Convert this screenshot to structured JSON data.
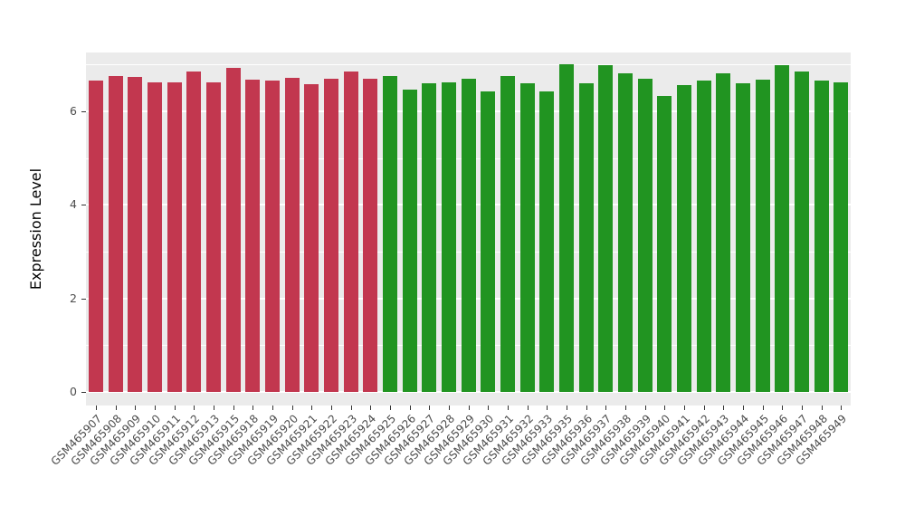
{
  "chart_data": {
    "type": "bar",
    "title": "",
    "xlabel": "",
    "ylabel": "Expression Level",
    "ylim": [
      0,
      7.25
    ],
    "yticks": [
      0,
      2,
      4,
      6
    ],
    "minor_gridlines": [
      1,
      3,
      5,
      7
    ],
    "grid": "on",
    "legend": "none",
    "panel_background": "#EBEBEB",
    "gridline_color": "#ffffff",
    "group1_color": "#C2374F",
    "group2_color": "#219421",
    "group1_count": 15,
    "categories": [
      "GSM465907",
      "GSM465908",
      "GSM465909",
      "GSM465910",
      "GSM465911",
      "GSM465912",
      "GSM465913",
      "GSM465915",
      "GSM465918",
      "GSM465919",
      "GSM465920",
      "GSM465921",
      "GSM465922",
      "GSM465923",
      "GSM465924",
      "GSM465925",
      "GSM465926",
      "GSM465927",
      "GSM465928",
      "GSM465929",
      "GSM465930",
      "GSM465931",
      "GSM465932",
      "GSM465933",
      "GSM465935",
      "GSM465936",
      "GSM465937",
      "GSM465938",
      "GSM465939",
      "GSM465940",
      "GSM465941",
      "GSM465942",
      "GSM465943",
      "GSM465944",
      "GSM465945",
      "GSM465946",
      "GSM465947",
      "GSM465948",
      "GSM465949"
    ],
    "values": [
      6.65,
      6.75,
      6.73,
      6.62,
      6.62,
      6.85,
      6.62,
      6.93,
      6.67,
      6.65,
      6.72,
      6.57,
      6.7,
      6.84,
      6.7,
      6.75,
      6.47,
      6.6,
      6.62,
      6.7,
      6.42,
      6.75,
      6.6,
      6.42,
      7.0,
      6.6,
      6.98,
      6.8,
      6.7,
      6.32,
      6.55,
      6.65,
      6.8,
      6.6,
      6.68,
      6.98,
      6.85,
      6.65,
      6.62
    ]
  }
}
